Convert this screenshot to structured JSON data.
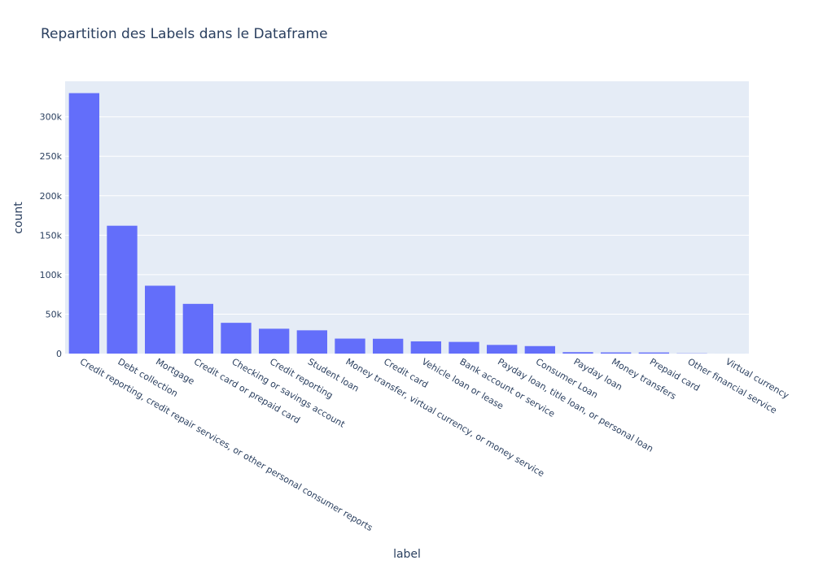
{
  "chart_data": {
    "type": "bar",
    "title": "Repartition des Labels dans le Dataframe",
    "xlabel": "label",
    "ylabel": "count",
    "ylim": [
      0,
      345000
    ],
    "yticks": [
      0,
      50000,
      100000,
      150000,
      200000,
      250000,
      300000
    ],
    "ytick_labels": [
      "0",
      "50k",
      "100k",
      "150k",
      "200k",
      "250k",
      "300k"
    ],
    "grid": true,
    "color": "#636efa",
    "background": "#e5ecf6",
    "categories": [
      "Credit reporting, credit repair services, or other personal consumer reports",
      "Debt collection",
      "Mortgage",
      "Credit card or prepaid card",
      "Checking or savings account",
      "Credit reporting",
      "Student loan",
      "Money transfer, virtual currency, or money service",
      "Credit card",
      "Vehicle loan or lease",
      "Bank account or service",
      "Payday loan, title loan, or personal loan",
      "Consumer Loan",
      "Payday loan",
      "Money transfers",
      "Prepaid card",
      "Other financial service",
      "Virtual currency"
    ],
    "values": [
      330000,
      162000,
      86000,
      63000,
      39000,
      31500,
      29500,
      19000,
      18800,
      15500,
      14800,
      11000,
      9500,
      1800,
      1500,
      1400,
      300,
      20
    ]
  }
}
